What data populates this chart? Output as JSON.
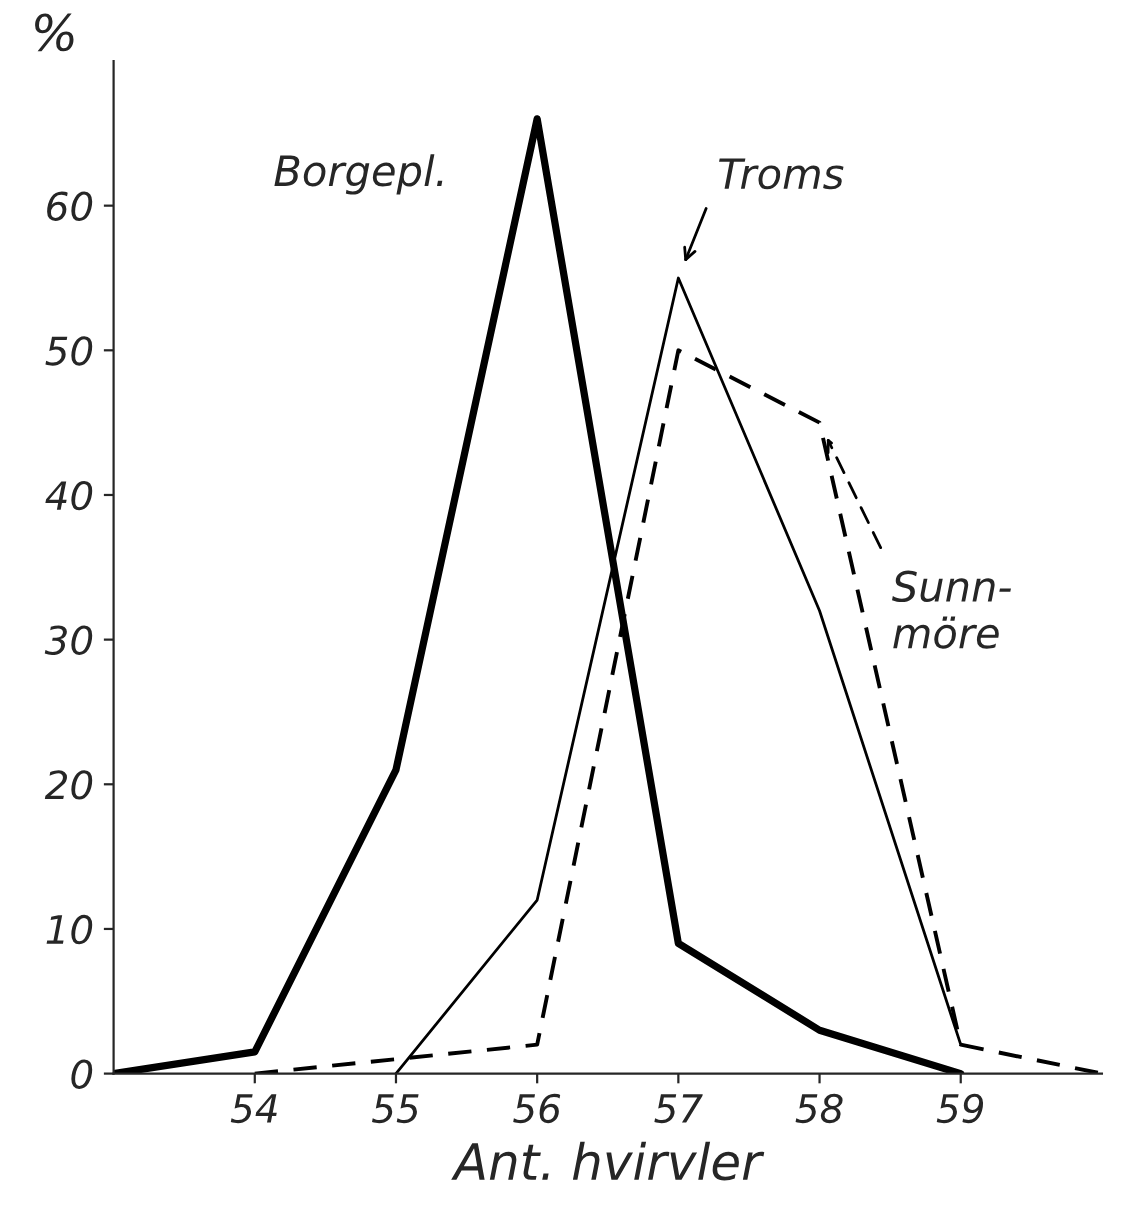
{
  "chart_data": {
    "type": "line",
    "xlabel": "Ant. hvirvler",
    "ylabel": "%",
    "xlim": [
      53,
      60
    ],
    "xticks": [
      54,
      55,
      56,
      57,
      58,
      59
    ],
    "ylim": [
      0,
      70
    ],
    "yticks": [
      0,
      10,
      20,
      30,
      40,
      50,
      60
    ],
    "grid": false,
    "legend": false,
    "marker": "none",
    "series": [
      {
        "name": "Borgepl.",
        "color": "#000000",
        "line_style": "solid",
        "x": [
          53,
          54,
          55,
          56,
          57,
          58,
          59
        ],
        "values": [
          0,
          1.5,
          21,
          66,
          9,
          3,
          0
        ]
      },
      {
        "name": "Troms",
        "color": "#000000",
        "line_style": "solid",
        "x": [
          55,
          56,
          57,
          58,
          59
        ],
        "values": [
          0,
          12,
          55,
          32,
          2
        ]
      },
      {
        "name": "Sunn-\nmöre",
        "color": "#000000",
        "line_style": "dashed",
        "x": [
          54,
          55,
          56,
          57,
          58,
          59,
          60
        ],
        "values": [
          0,
          1,
          2,
          50,
          45,
          2,
          0
        ]
      }
    ]
  }
}
